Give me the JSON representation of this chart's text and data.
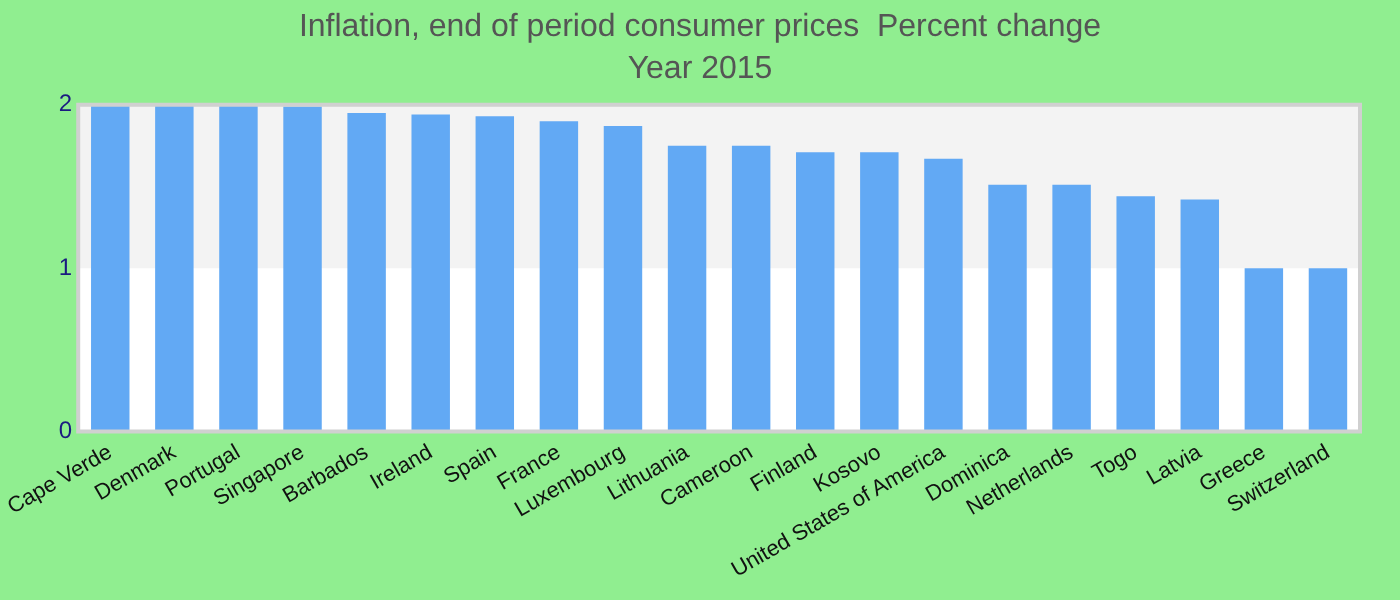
{
  "chart_data": {
    "type": "bar",
    "title": "Inflation, end of period consumer prices  Percent change",
    "subtitle": "Year 2015",
    "categories": [
      "Cape Verde",
      "Denmark",
      "Portugal",
      "Singapore",
      "Barbados",
      "Ireland",
      "Spain",
      "France",
      "Luxembourg",
      "Lithuania",
      "Cameroon",
      "Finland",
      "Kosovo",
      "United States of America",
      "Dominica",
      "Netherlands",
      "Togo",
      "Latvia",
      "Greece",
      "Switzerland"
    ],
    "values": [
      2.0,
      2.0,
      2.0,
      1.99,
      1.95,
      1.94,
      1.93,
      1.9,
      1.87,
      1.75,
      1.75,
      1.71,
      1.71,
      1.67,
      1.51,
      1.51,
      1.44,
      1.42,
      1.0,
      1.0
    ],
    "color": "#62a9f4",
    "ylim": [
      0,
      2
    ],
    "yticks": [
      0,
      1,
      2
    ],
    "bands": [
      {
        "axis": "y",
        "from": 1,
        "to": 2,
        "color": "#f3f3f3"
      }
    ],
    "grid": false,
    "legend": false
  }
}
